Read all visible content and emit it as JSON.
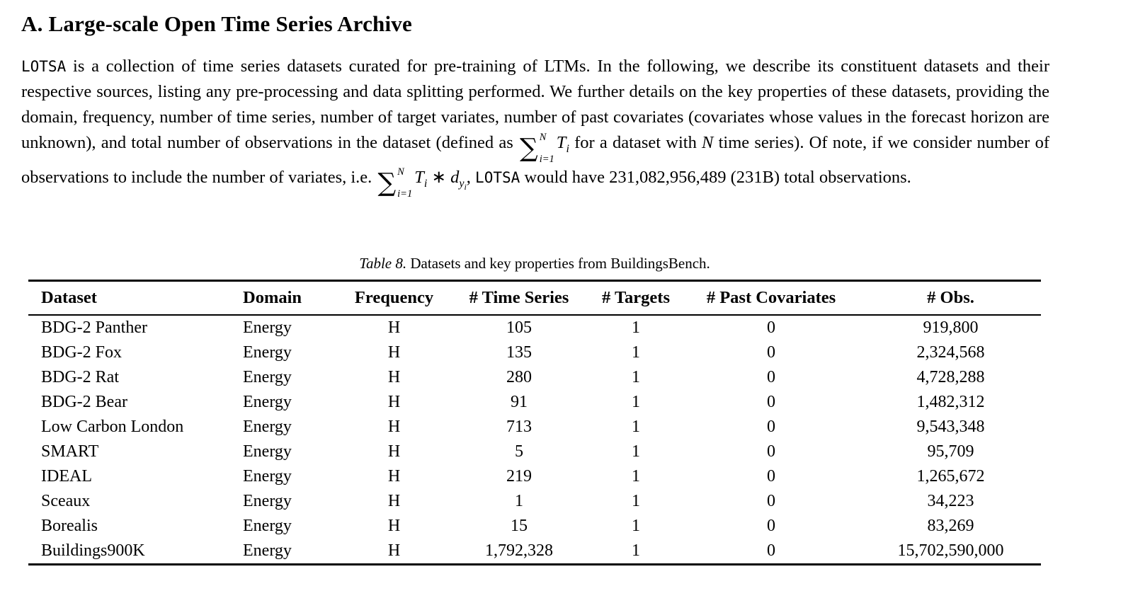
{
  "page": {
    "section_title": "A. Large-scale Open Time Series Archive"
  },
  "paragraph": {
    "lotsa_1": "LOTSA",
    "seg_1": " is a collection of time series datasets curated for pre-training of LTMs. In the following, we describe its constituent datasets and their respective sources, listing any pre-processing and data splitting performed. We further details on the key properties of these datasets, providing the domain, frequency, number of time series, number of target variates, number of past covariates (covariates whose values in the forecast horizon are unknown), and total number of observations in the dataset (defined as ",
    "seg_2": " for a dataset with ",
    "seg_3": " time series). Of note, if we consider number of observations to include the number of variates, i.e. ",
    "seg_4": ", ",
    "lotsa_2": "LOTSA",
    "seg_5": " would have 231,082,956,489 (231B) total observations."
  },
  "math": {
    "sigma": "∑",
    "sup": "N",
    "sub": "i=1",
    "T": "T",
    "T_sub": "i",
    "star": " ∗ ",
    "d": "d",
    "d_sub": "y",
    "d_sub_sub": "i",
    "N": "N"
  },
  "table": {
    "caption_label": "Table 8.",
    "caption_text": " Datasets and key properties from BuildingsBench.",
    "columns": [
      "Dataset",
      "Domain",
      "Frequency",
      "# Time Series",
      "# Targets",
      "# Past Covariates",
      "# Obs."
    ],
    "rows": [
      [
        "BDG-2 Panther",
        "Energy",
        "H",
        "105",
        "1",
        "0",
        "919,800"
      ],
      [
        "BDG-2 Fox",
        "Energy",
        "H",
        "135",
        "1",
        "0",
        "2,324,568"
      ],
      [
        "BDG-2 Rat",
        "Energy",
        "H",
        "280",
        "1",
        "0",
        "4,728,288"
      ],
      [
        "BDG-2 Bear",
        "Energy",
        "H",
        "91",
        "1",
        "0",
        "1,482,312"
      ],
      [
        "Low Carbon London",
        "Energy",
        "H",
        "713",
        "1",
        "0",
        "9,543,348"
      ],
      [
        "SMART",
        "Energy",
        "H",
        "5",
        "1",
        "0",
        "95,709"
      ],
      [
        "IDEAL",
        "Energy",
        "H",
        "219",
        "1",
        "0",
        "1,265,672"
      ],
      [
        "Sceaux",
        "Energy",
        "H",
        "1",
        "1",
        "0",
        "34,223"
      ],
      [
        "Borealis",
        "Energy",
        "H",
        "15",
        "1",
        "0",
        "83,269"
      ],
      [
        "Buildings900K",
        "Energy",
        "H",
        "1,792,328",
        "1",
        "0",
        "15,702,590,000"
      ]
    ]
  }
}
